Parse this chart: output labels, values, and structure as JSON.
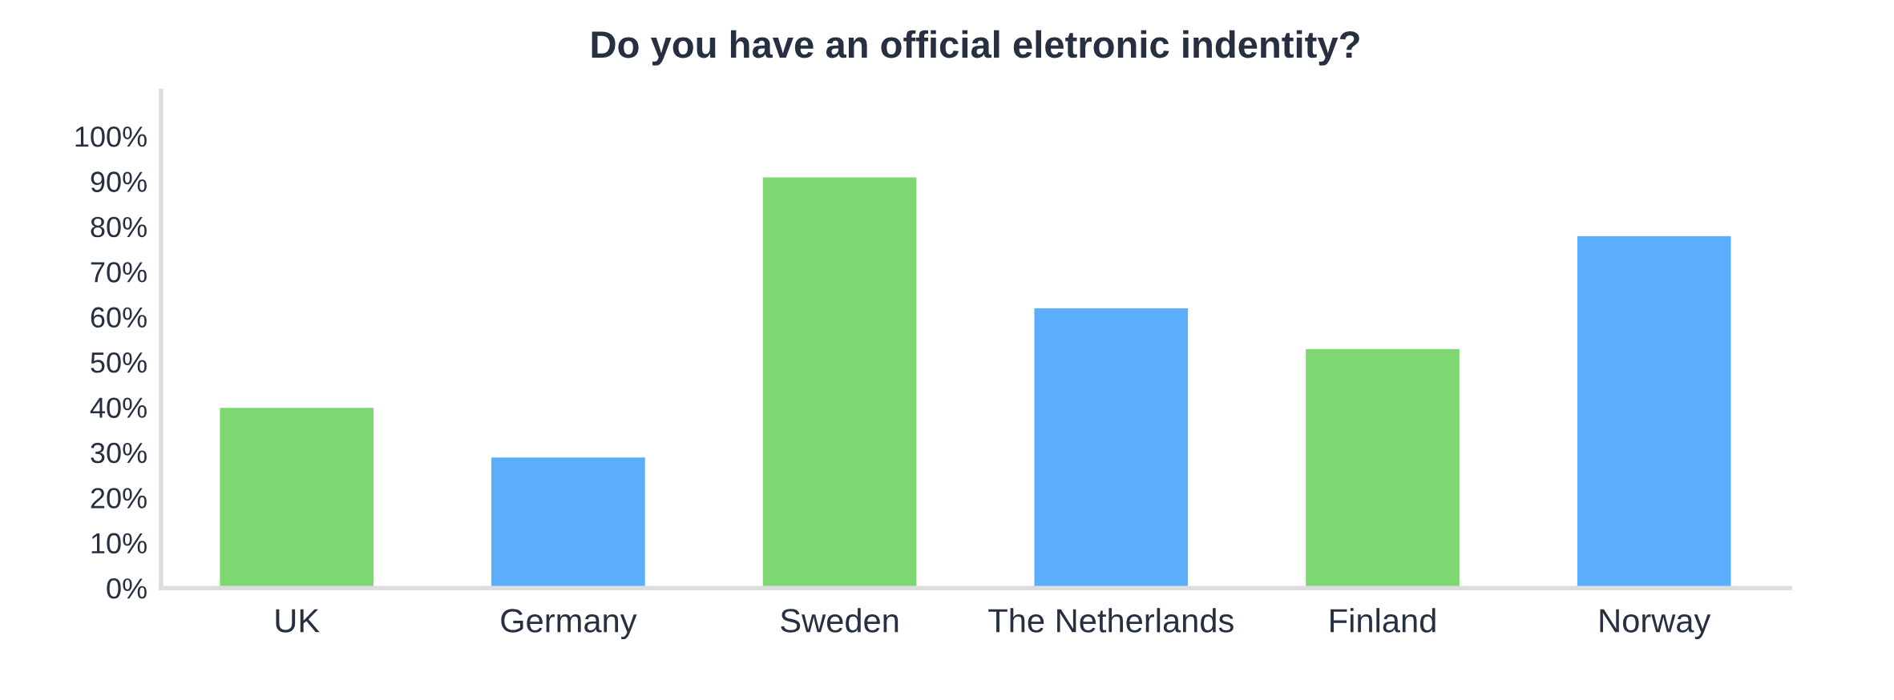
{
  "chart_data": {
    "type": "bar",
    "title": "Do you have an official eletronic indentity?",
    "categories": [
      "UK",
      "Germany",
      "Sweden",
      "The Netherlands",
      "Finland",
      "Norway"
    ],
    "values": [
      40,
      29,
      91,
      62,
      53,
      78
    ],
    "colors": [
      "#7ed872",
      "#5aaefc",
      "#7ed872",
      "#5aaefc",
      "#7ed872",
      "#5aaefc"
    ],
    "ylim": [
      0,
      110
    ],
    "yticks": [
      {
        "value": 0,
        "label": "0%"
      },
      {
        "value": 10,
        "label": "10%"
      },
      {
        "value": 20,
        "label": "20%"
      },
      {
        "value": 30,
        "label": "30%"
      },
      {
        "value": 40,
        "label": "40%"
      },
      {
        "value": 50,
        "label": "50%"
      },
      {
        "value": 60,
        "label": "60%"
      },
      {
        "value": 70,
        "label": "70%"
      },
      {
        "value": 80,
        "label": "80%"
      },
      {
        "value": 90,
        "label": "90%"
      },
      {
        "value": 100,
        "label": "100%"
      }
    ],
    "grid": false
  }
}
